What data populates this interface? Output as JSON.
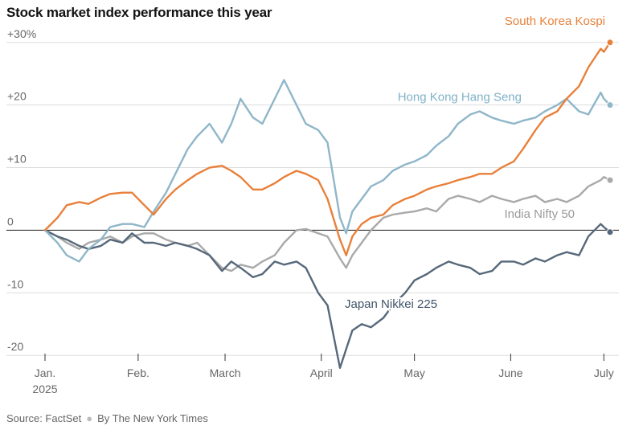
{
  "header": {
    "title": "Stock market index performance this year"
  },
  "footer": {
    "source": "Source: FactSet",
    "byline": "By The New York Times"
  },
  "chart_data": {
    "type": "line",
    "title": "Stock market index performance this year",
    "ylabel": "",
    "xlabel": "",
    "ylim": [
      -21,
      31
    ],
    "y_ticks": [
      {
        "value": 30,
        "label": "+30%"
      },
      {
        "value": 20,
        "label": "+20"
      },
      {
        "value": 10,
        "label": "+10"
      },
      {
        "value": 0,
        "label": "0"
      },
      {
        "value": -10,
        "label": "-10"
      },
      {
        "value": -20,
        "label": "-20"
      }
    ],
    "x_ticks": [
      {
        "date": "2025-01-02",
        "label": "Jan.",
        "sublabel": "2025"
      },
      {
        "date": "2025-02-01",
        "label": "Feb."
      },
      {
        "date": "2025-03-01",
        "label": "March"
      },
      {
        "date": "2025-04-01",
        "label": "April"
      },
      {
        "date": "2025-05-01",
        "label": "May"
      },
      {
        "date": "2025-06-01",
        "label": "June"
      },
      {
        "date": "2025-07-01",
        "label": "July"
      }
    ],
    "x_domain": [
      "2025-01-02",
      "2025-07-03"
    ],
    "grid": true,
    "series": [
      {
        "name": "South Korea Kospi",
        "color": "#e8803a",
        "label_color": "#e8803a",
        "points": [
          [
            "2025-01-02",
            0
          ],
          [
            "2025-01-06",
            2
          ],
          [
            "2025-01-09",
            4
          ],
          [
            "2025-01-13",
            4.5
          ],
          [
            "2025-01-16",
            4.2
          ],
          [
            "2025-01-20",
            5.2
          ],
          [
            "2025-01-23",
            5.8
          ],
          [
            "2025-01-27",
            6
          ],
          [
            "2025-01-30",
            6
          ],
          [
            "2025-02-03",
            4
          ],
          [
            "2025-02-06",
            2.5
          ],
          [
            "2025-02-10",
            5
          ],
          [
            "2025-02-13",
            6.5
          ],
          [
            "2025-02-17",
            8
          ],
          [
            "2025-02-20",
            9
          ],
          [
            "2025-02-24",
            10
          ],
          [
            "2025-02-28",
            10.3
          ],
          [
            "2025-03-03",
            9.5
          ],
          [
            "2025-03-06",
            8.5
          ],
          [
            "2025-03-10",
            6.5
          ],
          [
            "2025-03-13",
            6.5
          ],
          [
            "2025-03-17",
            7.5
          ],
          [
            "2025-03-20",
            8.5
          ],
          [
            "2025-03-24",
            9.5
          ],
          [
            "2025-03-27",
            9
          ],
          [
            "2025-03-31",
            8
          ],
          [
            "2025-04-03",
            5
          ],
          [
            "2025-04-07",
            -1.5
          ],
          [
            "2025-04-09",
            -4
          ],
          [
            "2025-04-11",
            -1
          ],
          [
            "2025-04-14",
            1
          ],
          [
            "2025-04-17",
            2
          ],
          [
            "2025-04-21",
            2.5
          ],
          [
            "2025-04-24",
            4
          ],
          [
            "2025-04-28",
            5
          ],
          [
            "2025-05-01",
            5.5
          ],
          [
            "2025-05-05",
            6.5
          ],
          [
            "2025-05-08",
            7
          ],
          [
            "2025-05-12",
            7.5
          ],
          [
            "2025-05-15",
            8
          ],
          [
            "2025-05-19",
            8.5
          ],
          [
            "2025-05-22",
            9
          ],
          [
            "2025-05-26",
            9
          ],
          [
            "2025-05-29",
            10
          ],
          [
            "2025-06-02",
            11
          ],
          [
            "2025-06-05",
            13
          ],
          [
            "2025-06-09",
            16
          ],
          [
            "2025-06-12",
            18
          ],
          [
            "2025-06-16",
            19
          ],
          [
            "2025-06-19",
            21
          ],
          [
            "2025-06-23",
            23
          ],
          [
            "2025-06-26",
            26
          ],
          [
            "2025-06-30",
            29
          ],
          [
            "2025-07-01",
            28.5
          ],
          [
            "2025-07-03",
            30
          ]
        ]
      },
      {
        "name": "Hong Kong Hang Seng",
        "color": "#8fb6c9",
        "label_color": "#7fb1c8",
        "points": [
          [
            "2025-01-02",
            0
          ],
          [
            "2025-01-06",
            -2
          ],
          [
            "2025-01-09",
            -4
          ],
          [
            "2025-01-13",
            -5
          ],
          [
            "2025-01-16",
            -3
          ],
          [
            "2025-01-20",
            -1.5
          ],
          [
            "2025-01-23",
            0.5
          ],
          [
            "2025-01-27",
            1
          ],
          [
            "2025-01-30",
            1
          ],
          [
            "2025-02-03",
            0.5
          ],
          [
            "2025-02-06",
            3
          ],
          [
            "2025-02-10",
            6
          ],
          [
            "2025-02-13",
            9
          ],
          [
            "2025-02-17",
            13
          ],
          [
            "2025-02-20",
            15
          ],
          [
            "2025-02-24",
            17
          ],
          [
            "2025-02-28",
            14
          ],
          [
            "2025-03-03",
            17
          ],
          [
            "2025-03-06",
            21
          ],
          [
            "2025-03-10",
            18
          ],
          [
            "2025-03-13",
            17
          ],
          [
            "2025-03-17",
            21
          ],
          [
            "2025-03-20",
            24
          ],
          [
            "2025-03-24",
            20
          ],
          [
            "2025-03-27",
            17
          ],
          [
            "2025-03-31",
            16
          ],
          [
            "2025-04-03",
            14
          ],
          [
            "2025-04-07",
            2
          ],
          [
            "2025-04-09",
            -0.5
          ],
          [
            "2025-04-11",
            3
          ],
          [
            "2025-04-14",
            5
          ],
          [
            "2025-04-17",
            7
          ],
          [
            "2025-04-21",
            8
          ],
          [
            "2025-04-24",
            9.5
          ],
          [
            "2025-04-28",
            10.5
          ],
          [
            "2025-05-01",
            11
          ],
          [
            "2025-05-05",
            12
          ],
          [
            "2025-05-08",
            13.5
          ],
          [
            "2025-05-12",
            15
          ],
          [
            "2025-05-15",
            17
          ],
          [
            "2025-05-19",
            18.5
          ],
          [
            "2025-05-22",
            19
          ],
          [
            "2025-05-26",
            18
          ],
          [
            "2025-05-29",
            17.5
          ],
          [
            "2025-06-02",
            17
          ],
          [
            "2025-06-05",
            17.5
          ],
          [
            "2025-06-09",
            18
          ],
          [
            "2025-06-12",
            19
          ],
          [
            "2025-06-16",
            20
          ],
          [
            "2025-06-19",
            21
          ],
          [
            "2025-06-23",
            19
          ],
          [
            "2025-06-26",
            18.5
          ],
          [
            "2025-06-30",
            22
          ],
          [
            "2025-07-01",
            21
          ],
          [
            "2025-07-03",
            20
          ]
        ]
      },
      {
        "name": "India Nifty 50",
        "color": "#a9a9a9",
        "label_color": "#9a9a9a",
        "points": [
          [
            "2025-01-02",
            0
          ],
          [
            "2025-01-06",
            -1
          ],
          [
            "2025-01-09",
            -2
          ],
          [
            "2025-01-13",
            -3
          ],
          [
            "2025-01-16",
            -2
          ],
          [
            "2025-01-20",
            -1.5
          ],
          [
            "2025-01-23",
            -1
          ],
          [
            "2025-01-27",
            -2
          ],
          [
            "2025-01-30",
            -1
          ],
          [
            "2025-02-03",
            -0.5
          ],
          [
            "2025-02-06",
            -0.5
          ],
          [
            "2025-02-10",
            -1.5
          ],
          [
            "2025-02-13",
            -2
          ],
          [
            "2025-02-17",
            -2.5
          ],
          [
            "2025-02-20",
            -2
          ],
          [
            "2025-02-24",
            -4
          ],
          [
            "2025-02-28",
            -6
          ],
          [
            "2025-03-03",
            -6.5
          ],
          [
            "2025-03-06",
            -5.5
          ],
          [
            "2025-03-10",
            -6
          ],
          [
            "2025-03-13",
            -5
          ],
          [
            "2025-03-17",
            -4
          ],
          [
            "2025-03-20",
            -2
          ],
          [
            "2025-03-24",
            0
          ],
          [
            "2025-03-27",
            0.2
          ],
          [
            "2025-03-31",
            -0.5
          ],
          [
            "2025-04-03",
            -1
          ],
          [
            "2025-04-07",
            -4.5
          ],
          [
            "2025-04-09",
            -6
          ],
          [
            "2025-04-11",
            -4
          ],
          [
            "2025-04-14",
            -2
          ],
          [
            "2025-04-17",
            0
          ],
          [
            "2025-04-21",
            2
          ],
          [
            "2025-04-24",
            2.5
          ],
          [
            "2025-04-28",
            2.8
          ],
          [
            "2025-05-01",
            3
          ],
          [
            "2025-05-05",
            3.5
          ],
          [
            "2025-05-08",
            3
          ],
          [
            "2025-05-12",
            5
          ],
          [
            "2025-05-15",
            5.5
          ],
          [
            "2025-05-19",
            5
          ],
          [
            "2025-05-22",
            4.5
          ],
          [
            "2025-05-26",
            5.5
          ],
          [
            "2025-05-29",
            5
          ],
          [
            "2025-06-02",
            4.5
          ],
          [
            "2025-06-05",
            5
          ],
          [
            "2025-06-09",
            5.5
          ],
          [
            "2025-06-12",
            4.5
          ],
          [
            "2025-06-16",
            5
          ],
          [
            "2025-06-19",
            4.5
          ],
          [
            "2025-06-23",
            5.5
          ],
          [
            "2025-06-26",
            7
          ],
          [
            "2025-06-30",
            8
          ],
          [
            "2025-07-01",
            8.5
          ],
          [
            "2025-07-03",
            8
          ]
        ]
      },
      {
        "name": "Japan Nikkei 225",
        "color": "#56687a",
        "label_color": "#3f5468",
        "points": [
          [
            "2025-01-02",
            0
          ],
          [
            "2025-01-06",
            -1
          ],
          [
            "2025-01-09",
            -1.5
          ],
          [
            "2025-01-13",
            -2.5
          ],
          [
            "2025-01-16",
            -3
          ],
          [
            "2025-01-20",
            -2.5
          ],
          [
            "2025-01-23",
            -1.5
          ],
          [
            "2025-01-27",
            -2
          ],
          [
            "2025-01-30",
            -0.5
          ],
          [
            "2025-02-03",
            -2
          ],
          [
            "2025-02-06",
            -2
          ],
          [
            "2025-02-10",
            -2.5
          ],
          [
            "2025-02-13",
            -2
          ],
          [
            "2025-02-17",
            -2.5
          ],
          [
            "2025-02-20",
            -3
          ],
          [
            "2025-02-24",
            -4
          ],
          [
            "2025-02-28",
            -6.5
          ],
          [
            "2025-03-03",
            -5
          ],
          [
            "2025-03-06",
            -6
          ],
          [
            "2025-03-10",
            -7.5
          ],
          [
            "2025-03-13",
            -7
          ],
          [
            "2025-03-17",
            -5
          ],
          [
            "2025-03-20",
            -5.5
          ],
          [
            "2025-03-24",
            -5
          ],
          [
            "2025-03-27",
            -6
          ],
          [
            "2025-03-31",
            -10
          ],
          [
            "2025-04-03",
            -12
          ],
          [
            "2025-04-07",
            -22
          ],
          [
            "2025-04-09",
            -19
          ],
          [
            "2025-04-11",
            -16
          ],
          [
            "2025-04-14",
            -15
          ],
          [
            "2025-04-17",
            -15.5
          ],
          [
            "2025-04-21",
            -14
          ],
          [
            "2025-04-24",
            -12
          ],
          [
            "2025-04-28",
            -10
          ],
          [
            "2025-05-01",
            -8
          ],
          [
            "2025-05-05",
            -7
          ],
          [
            "2025-05-08",
            -6
          ],
          [
            "2025-05-12",
            -5
          ],
          [
            "2025-05-15",
            -5.5
          ],
          [
            "2025-05-19",
            -6
          ],
          [
            "2025-05-22",
            -7
          ],
          [
            "2025-05-26",
            -6.5
          ],
          [
            "2025-05-29",
            -5
          ],
          [
            "2025-06-02",
            -5
          ],
          [
            "2025-06-05",
            -5.5
          ],
          [
            "2025-06-09",
            -4.5
          ],
          [
            "2025-06-12",
            -5
          ],
          [
            "2025-06-16",
            -4
          ],
          [
            "2025-06-19",
            -3.5
          ],
          [
            "2025-06-23",
            -4
          ],
          [
            "2025-06-26",
            -1
          ],
          [
            "2025-06-30",
            1
          ],
          [
            "2025-07-01",
            0.5
          ],
          [
            "2025-07-03",
            -0.3
          ]
        ]
      }
    ]
  }
}
